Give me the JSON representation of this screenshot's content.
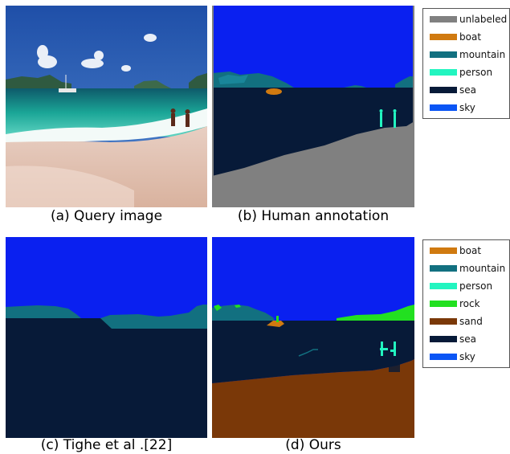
{
  "captions": {
    "a": "(a) Query image",
    "b": "(b) Human annotation",
    "c": "(c) Tighe et al .[22]",
    "d": "(d) Ours"
  },
  "legend_top": [
    {
      "label": "unlabeled",
      "color": "#808080"
    },
    {
      "label": "boat",
      "color": "#d07a10"
    },
    {
      "label": "mountain",
      "color": "#127080"
    },
    {
      "label": "person",
      "color": "#22f5c0"
    },
    {
      "label": "sea",
      "color": "#071a38"
    },
    {
      "label": "sky",
      "color": "#0a55f5"
    }
  ],
  "legend_bottom": [
    {
      "label": "boat",
      "color": "#d07a10"
    },
    {
      "label": "mountain",
      "color": "#127080"
    },
    {
      "label": "person",
      "color": "#22f5c0"
    },
    {
      "label": "rock",
      "color": "#22e020"
    },
    {
      "label": "sand",
      "color": "#7a3808"
    },
    {
      "label": "sea",
      "color": "#071a38"
    },
    {
      "label": "sky",
      "color": "#0a55f5"
    }
  ]
}
